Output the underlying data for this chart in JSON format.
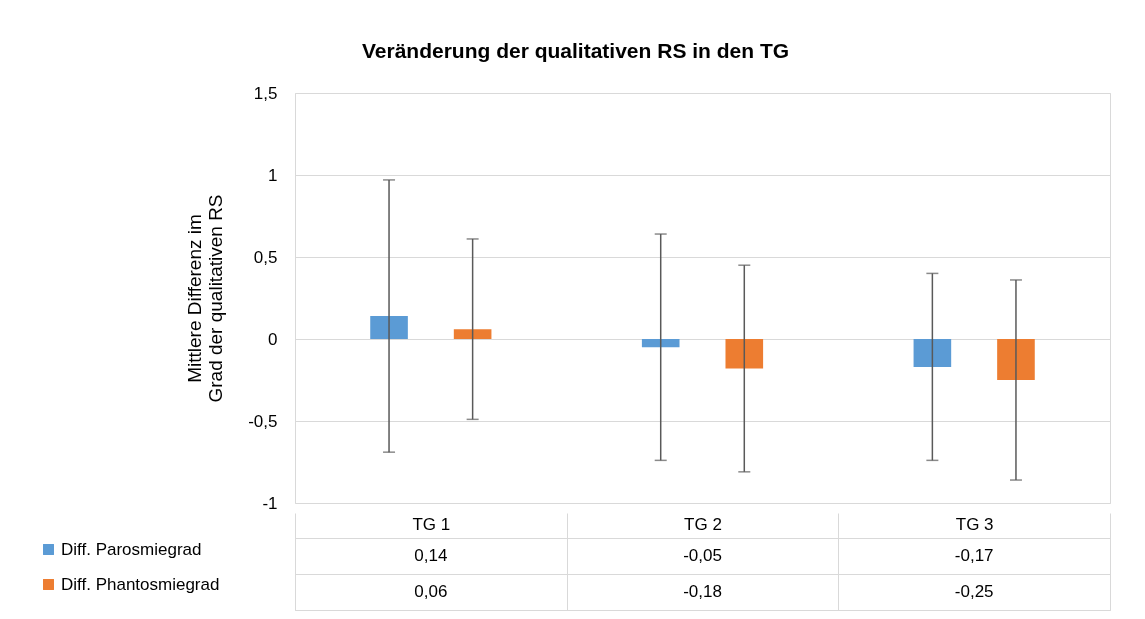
{
  "chart_data": {
    "type": "bar",
    "title": "Veränderung der qualitativen RS in den TG",
    "ylabel": "Mittlere Differenz im Grad der qualitativen RS",
    "categories": [
      "TG 1",
      "TG 2",
      "TG 3"
    ],
    "series": [
      {
        "name": "Diff. Parosmiegrad",
        "color": "#5b9bd5",
        "values": [
          0.14,
          -0.05,
          -0.17
        ],
        "errors": [
          0.83,
          0.69,
          0.57
        ],
        "value_labels": [
          "0,14",
          "-0,05",
          "-0,17"
        ]
      },
      {
        "name": "Diff. Phantosmiegrad",
        "color": "#ed7d31",
        "values": [
          0.06,
          -0.18,
          -0.25
        ],
        "errors": [
          0.55,
          0.63,
          0.61
        ],
        "value_labels": [
          "0,06",
          "-0,18",
          "-0,25"
        ]
      }
    ],
    "ylim": [
      -1,
      1.5
    ],
    "yticks": [
      {
        "value": -1,
        "label": "-1"
      },
      {
        "value": -0.5,
        "label": "-0,5"
      },
      0,
      {
        "value": 0.5,
        "label": "0,5"
      },
      1,
      {
        "value": 1.5,
        "label": "1,5"
      }
    ],
    "grid": "y",
    "legend": "bottom left"
  }
}
